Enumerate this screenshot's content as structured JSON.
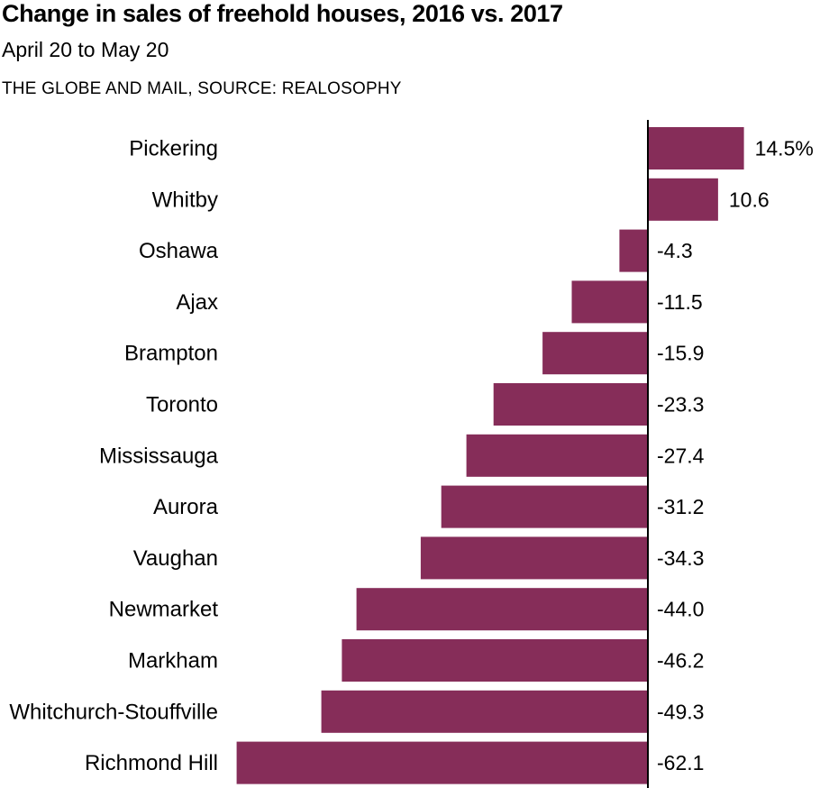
{
  "chart_data": {
    "type": "bar",
    "orientation": "horizontal",
    "title": "Change in sales of freehold houses, 2016 vs. 2017",
    "subtitle": "April 20 to May 20",
    "source": "THE GLOBE AND MAIL, SOURCE: REALOSOPHY",
    "categories": [
      "Pickering",
      "Whitby",
      "Oshawa",
      "Ajax",
      "Brampton",
      "Toronto",
      "Mississauga",
      "Aurora",
      "Vaughan",
      "Newmarket",
      "Markham",
      "Whitchurch-Stouffville",
      "Richmond Hill"
    ],
    "values": [
      14.5,
      10.6,
      -4.3,
      -11.5,
      -15.9,
      -23.3,
      -27.4,
      -31.2,
      -34.3,
      -44.0,
      -46.2,
      -49.3,
      -62.1
    ],
    "value_labels": [
      "14.5%",
      "10.6",
      "-4.3",
      "-11.5",
      "-15.9",
      "-23.3",
      "-27.4",
      "-31.2",
      "-34.3",
      "-44.0",
      "-46.2",
      "-49.3",
      "-62.1"
    ],
    "bar_color": "#862d59",
    "xlim": [
      -62.1,
      14.5
    ],
    "grid": false,
    "legend": "none"
  }
}
